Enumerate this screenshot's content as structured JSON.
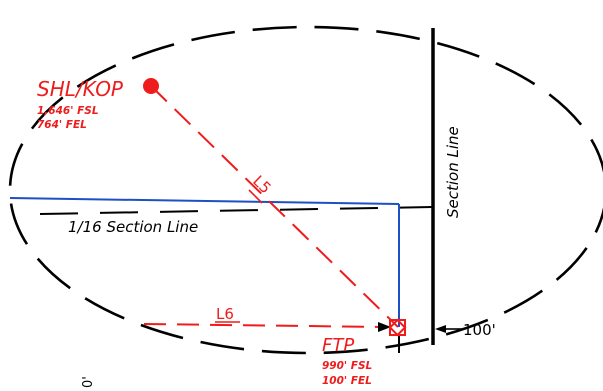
{
  "labels": {
    "shl_kop": "SHL/KOP",
    "shl_fsl": "1,646' FSL",
    "shl_fel": "764' FEL",
    "section_line": "Section Line",
    "sixteenth_line": "1/16 Section Line",
    "l5": "L5",
    "l6": "L6",
    "ftp": "FTP",
    "ftp_fsl": "990' FSL",
    "ftp_fel": "100' FEL",
    "offset": "100'",
    "corner_fragment": "0'"
  },
  "colors": {
    "red": "#ee1c1c",
    "blue": "#1f4fc4",
    "black": "#000000"
  }
}
